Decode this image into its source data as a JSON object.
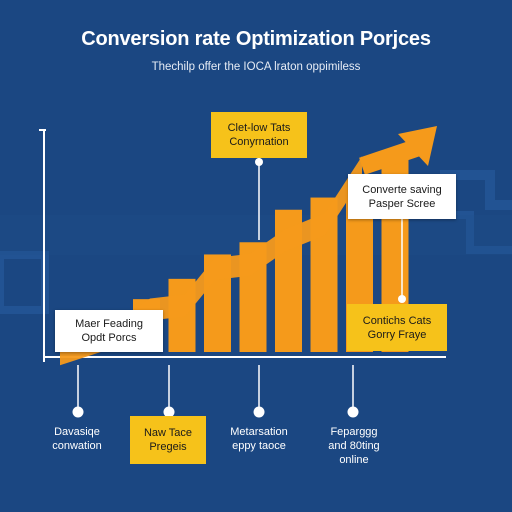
{
  "header": {
    "title": "Conversion rate Optimization Porjces",
    "subtitle": "Thechilp offer the IOCA lraton oppimiless"
  },
  "colors": {
    "background": "#1b4782",
    "accent_orange": "#f59a1b",
    "callout_yellow": "#f6c21a",
    "text_white": "#ffffff"
  },
  "callouts": {
    "top_center": [
      "Clet-low Tats",
      "Conyrnation"
    ],
    "top_right": [
      "Converte saving",
      "Pasper Scree"
    ],
    "left": [
      "Maer Feading",
      "Opdt Porcs"
    ],
    "right": [
      "Contichs Cats",
      "Gorry Fraye"
    ]
  },
  "bottom_labels": [
    {
      "lines": [
        "Davasiqe",
        "conwation"
      ],
      "boxed": false
    },
    {
      "lines": [
        "Naw Tace",
        "Pregeis"
      ],
      "boxed": true
    },
    {
      "lines": [
        "Metarsation",
        "eppy taoce"
      ],
      "boxed": false
    },
    {
      "lines": [
        "Feparggg",
        "and 80ting",
        "online"
      ],
      "boxed": false
    }
  ],
  "chart_data": {
    "type": "bar",
    "values": [
      1.3,
      1.8,
      2.4,
      2.7,
      3.5,
      3.8,
      4.2,
      4.9
    ],
    "trend": [
      1.2,
      1.6,
      2.3,
      2.4,
      3.3,
      3.4,
      4.0,
      4.4,
      5.8
    ],
    "title": "",
    "xlabel": "",
    "ylabel": ""
  }
}
